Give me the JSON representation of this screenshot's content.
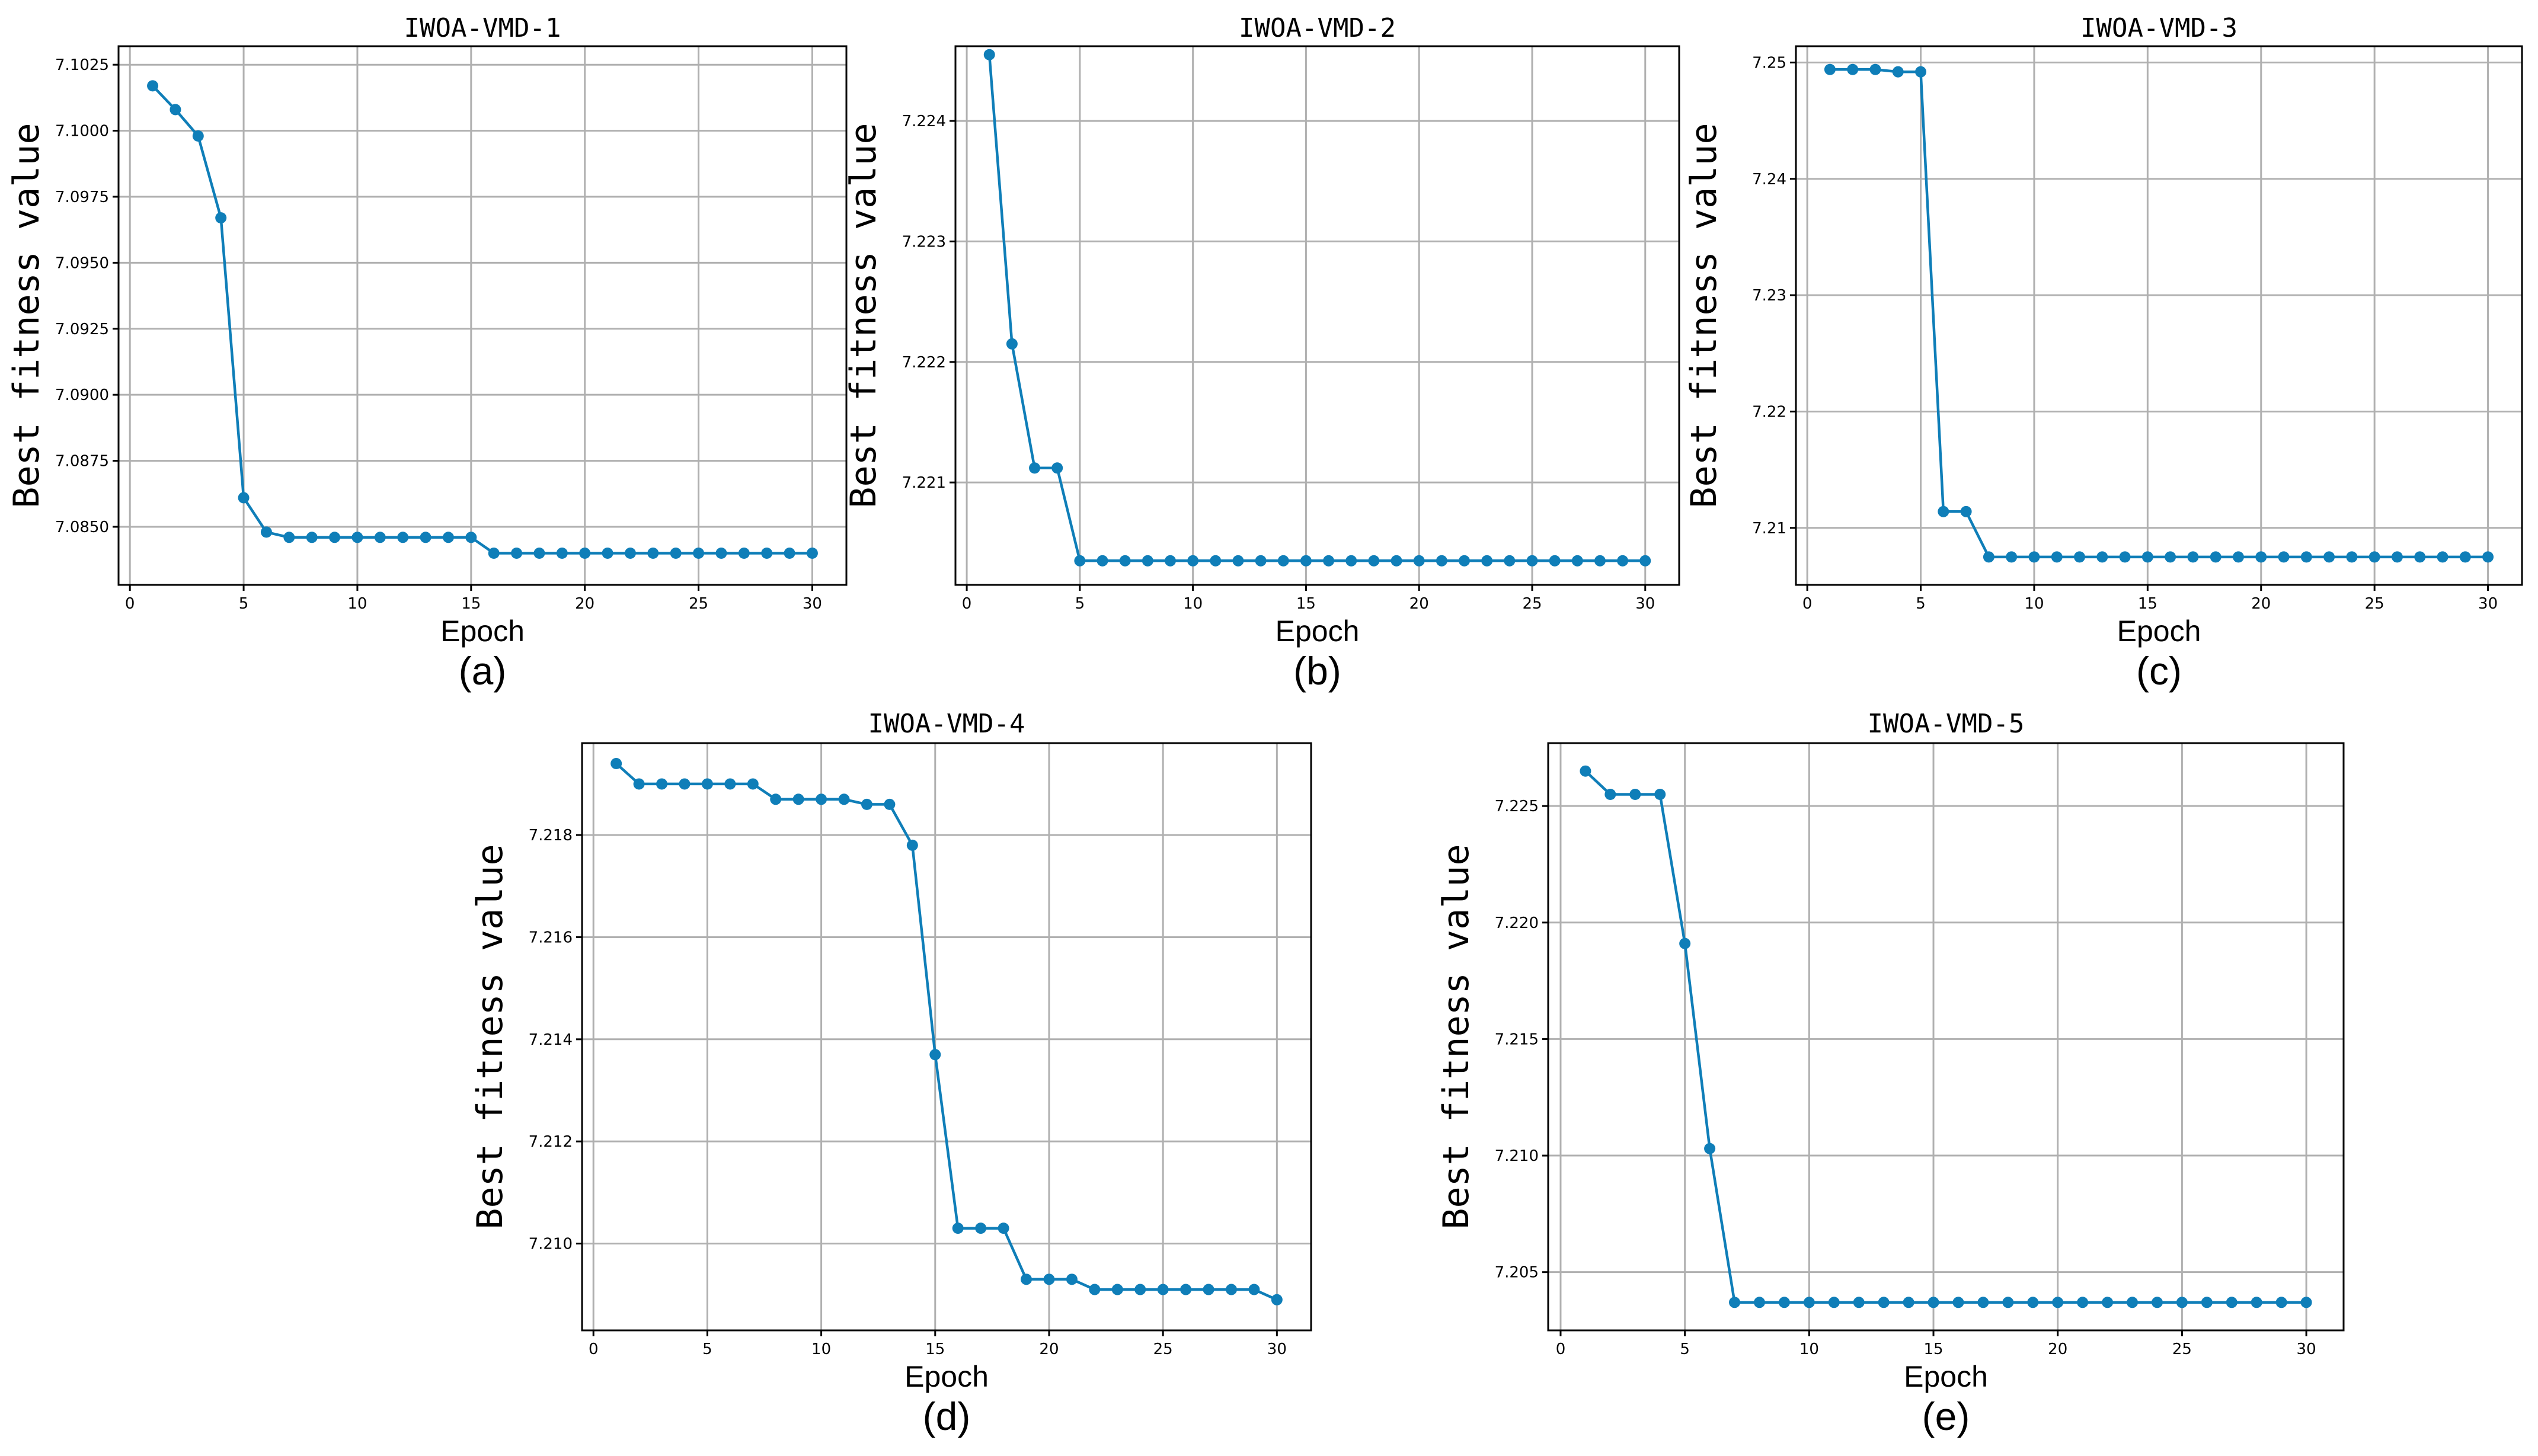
{
  "figure": {
    "panel_captions": [
      "(a)",
      "(b)",
      "(c)",
      "(d)",
      "(e)"
    ]
  },
  "colors": {
    "series": "#0f7eb8",
    "grid": "#b0b0b0",
    "axes": "#000000"
  },
  "chart_data": [
    {
      "type": "line",
      "title": "IWOA-VMD-1",
      "xlabel": "Epoch",
      "ylabel": "Best fitness value",
      "caption": "(a)",
      "grid": true,
      "xlim": [
        -0.5,
        31.5
      ],
      "ylim": [
        7.0828,
        7.1032
      ],
      "xticks": [
        0,
        5,
        10,
        15,
        20,
        25,
        30
      ],
      "yticks": [
        7.085,
        7.0875,
        7.09,
        7.0925,
        7.095,
        7.0975,
        7.1,
        7.1025
      ],
      "ytick_labels": [
        "7.0850",
        "7.0875",
        "7.0900",
        "7.0925",
        "7.0950",
        "7.0975",
        "7.1000",
        "7.1025"
      ],
      "x": [
        1,
        2,
        3,
        4,
        5,
        6,
        7,
        8,
        9,
        10,
        11,
        12,
        13,
        14,
        15,
        16,
        17,
        18,
        19,
        20,
        21,
        22,
        23,
        24,
        25,
        26,
        27,
        28,
        29,
        30
      ],
      "values": [
        7.1017,
        7.1008,
        7.0998,
        7.0967,
        7.0861,
        7.0848,
        7.0846,
        7.0846,
        7.0846,
        7.0846,
        7.0846,
        7.0846,
        7.0846,
        7.0846,
        7.0846,
        7.084,
        7.084,
        7.084,
        7.084,
        7.084,
        7.084,
        7.084,
        7.084,
        7.084,
        7.084,
        7.084,
        7.084,
        7.084,
        7.084,
        7.084
      ]
    },
    {
      "type": "line",
      "title": "IWOA-VMD-2",
      "xlabel": "Epoch",
      "ylabel": "Best fitness value",
      "caption": "(b)",
      "grid": true,
      "xlim": [
        -0.5,
        31.5
      ],
      "ylim": [
        7.22015,
        7.22462
      ],
      "xticks": [
        0,
        5,
        10,
        15,
        20,
        25,
        30
      ],
      "yticks": [
        7.221,
        7.222,
        7.223,
        7.224
      ],
      "ytick_labels": [
        "7.221",
        "7.222",
        "7.223",
        "7.224"
      ],
      "x": [
        1,
        2,
        3,
        4,
        5,
        6,
        7,
        8,
        9,
        10,
        11,
        12,
        13,
        14,
        15,
        16,
        17,
        18,
        19,
        20,
        21,
        22,
        23,
        24,
        25,
        26,
        27,
        28,
        29,
        30
      ],
      "values": [
        7.22455,
        7.22215,
        7.22112,
        7.22112,
        7.22035,
        7.22035,
        7.22035,
        7.22035,
        7.22035,
        7.22035,
        7.22035,
        7.22035,
        7.22035,
        7.22035,
        7.22035,
        7.22035,
        7.22035,
        7.22035,
        7.22035,
        7.22035,
        7.22035,
        7.22035,
        7.22035,
        7.22035,
        7.22035,
        7.22035,
        7.22035,
        7.22035,
        7.22035,
        7.22035
      ]
    },
    {
      "type": "line",
      "title": "IWOA-VMD-3",
      "xlabel": "Epoch",
      "ylabel": "Best fitness value",
      "caption": "(c)",
      "grid": true,
      "xlim": [
        -0.5,
        31.5
      ],
      "ylim": [
        7.2051,
        7.2514
      ],
      "xticks": [
        0,
        5,
        10,
        15,
        20,
        25,
        30
      ],
      "yticks": [
        7.21,
        7.22,
        7.23,
        7.24,
        7.25
      ],
      "ytick_labels": [
        "7.21",
        "7.22",
        "7.23",
        "7.24",
        "7.25"
      ],
      "x": [
        1,
        2,
        3,
        4,
        5,
        6,
        7,
        8,
        9,
        10,
        11,
        12,
        13,
        14,
        15,
        16,
        17,
        18,
        19,
        20,
        21,
        22,
        23,
        24,
        25,
        26,
        27,
        28,
        29,
        30
      ],
      "values": [
        7.2494,
        7.2494,
        7.2494,
        7.2492,
        7.2492,
        7.2114,
        7.2114,
        7.2075,
        7.2075,
        7.2075,
        7.2075,
        7.2075,
        7.2075,
        7.2075,
        7.2075,
        7.2075,
        7.2075,
        7.2075,
        7.2075,
        7.2075,
        7.2075,
        7.2075,
        7.2075,
        7.2075,
        7.2075,
        7.2075,
        7.2075,
        7.2075,
        7.2075,
        7.2075
      ]
    },
    {
      "type": "line",
      "title": "IWOA-VMD-4",
      "xlabel": "Epoch",
      "ylabel": "Best fitness value",
      "caption": "(d)",
      "grid": true,
      "xlim": [
        -0.5,
        31.5
      ],
      "ylim": [
        7.2083,
        7.2198
      ],
      "xticks": [
        0,
        5,
        10,
        15,
        20,
        25,
        30
      ],
      "yticks": [
        7.21,
        7.212,
        7.214,
        7.216,
        7.218
      ],
      "ytick_labels": [
        "7.210",
        "7.212",
        "7.214",
        "7.216",
        "7.218"
      ],
      "x": [
        1,
        2,
        3,
        4,
        5,
        6,
        7,
        8,
        9,
        10,
        11,
        12,
        13,
        14,
        15,
        16,
        17,
        18,
        19,
        20,
        21,
        22,
        23,
        24,
        25,
        26,
        27,
        28,
        29,
        30
      ],
      "values": [
        7.2194,
        7.219,
        7.219,
        7.219,
        7.219,
        7.219,
        7.219,
        7.2187,
        7.2187,
        7.2187,
        7.2187,
        7.2186,
        7.2186,
        7.2178,
        7.2137,
        7.2103,
        7.2103,
        7.2103,
        7.2093,
        7.2093,
        7.2093,
        7.2091,
        7.2091,
        7.2091,
        7.2091,
        7.2091,
        7.2091,
        7.2091,
        7.2091,
        7.2089
      ]
    },
    {
      "type": "line",
      "title": "IWOA-VMD-5",
      "xlabel": "Epoch",
      "ylabel": "Best fitness value",
      "caption": "(e)",
      "grid": true,
      "xlim": [
        -0.5,
        31.5
      ],
      "ylim": [
        7.2025,
        7.2277
      ],
      "xticks": [
        0,
        5,
        10,
        15,
        20,
        25,
        30
      ],
      "yticks": [
        7.205,
        7.21,
        7.215,
        7.22,
        7.225
      ],
      "ytick_labels": [
        "7.205",
        "7.210",
        "7.215",
        "7.220",
        "7.225"
      ],
      "x": [
        1,
        2,
        3,
        4,
        5,
        6,
        7,
        8,
        9,
        10,
        11,
        12,
        13,
        14,
        15,
        16,
        17,
        18,
        19,
        20,
        21,
        22,
        23,
        24,
        25,
        26,
        27,
        28,
        29,
        30
      ],
      "values": [
        7.2265,
        7.2255,
        7.2255,
        7.2255,
        7.2191,
        7.2103,
        7.2037,
        7.2037,
        7.2037,
        7.2037,
        7.2037,
        7.2037,
        7.2037,
        7.2037,
        7.2037,
        7.2037,
        7.2037,
        7.2037,
        7.2037,
        7.2037,
        7.2037,
        7.2037,
        7.2037,
        7.2037,
        7.2037,
        7.2037,
        7.2037,
        7.2037,
        7.2037,
        7.2037
      ]
    }
  ]
}
